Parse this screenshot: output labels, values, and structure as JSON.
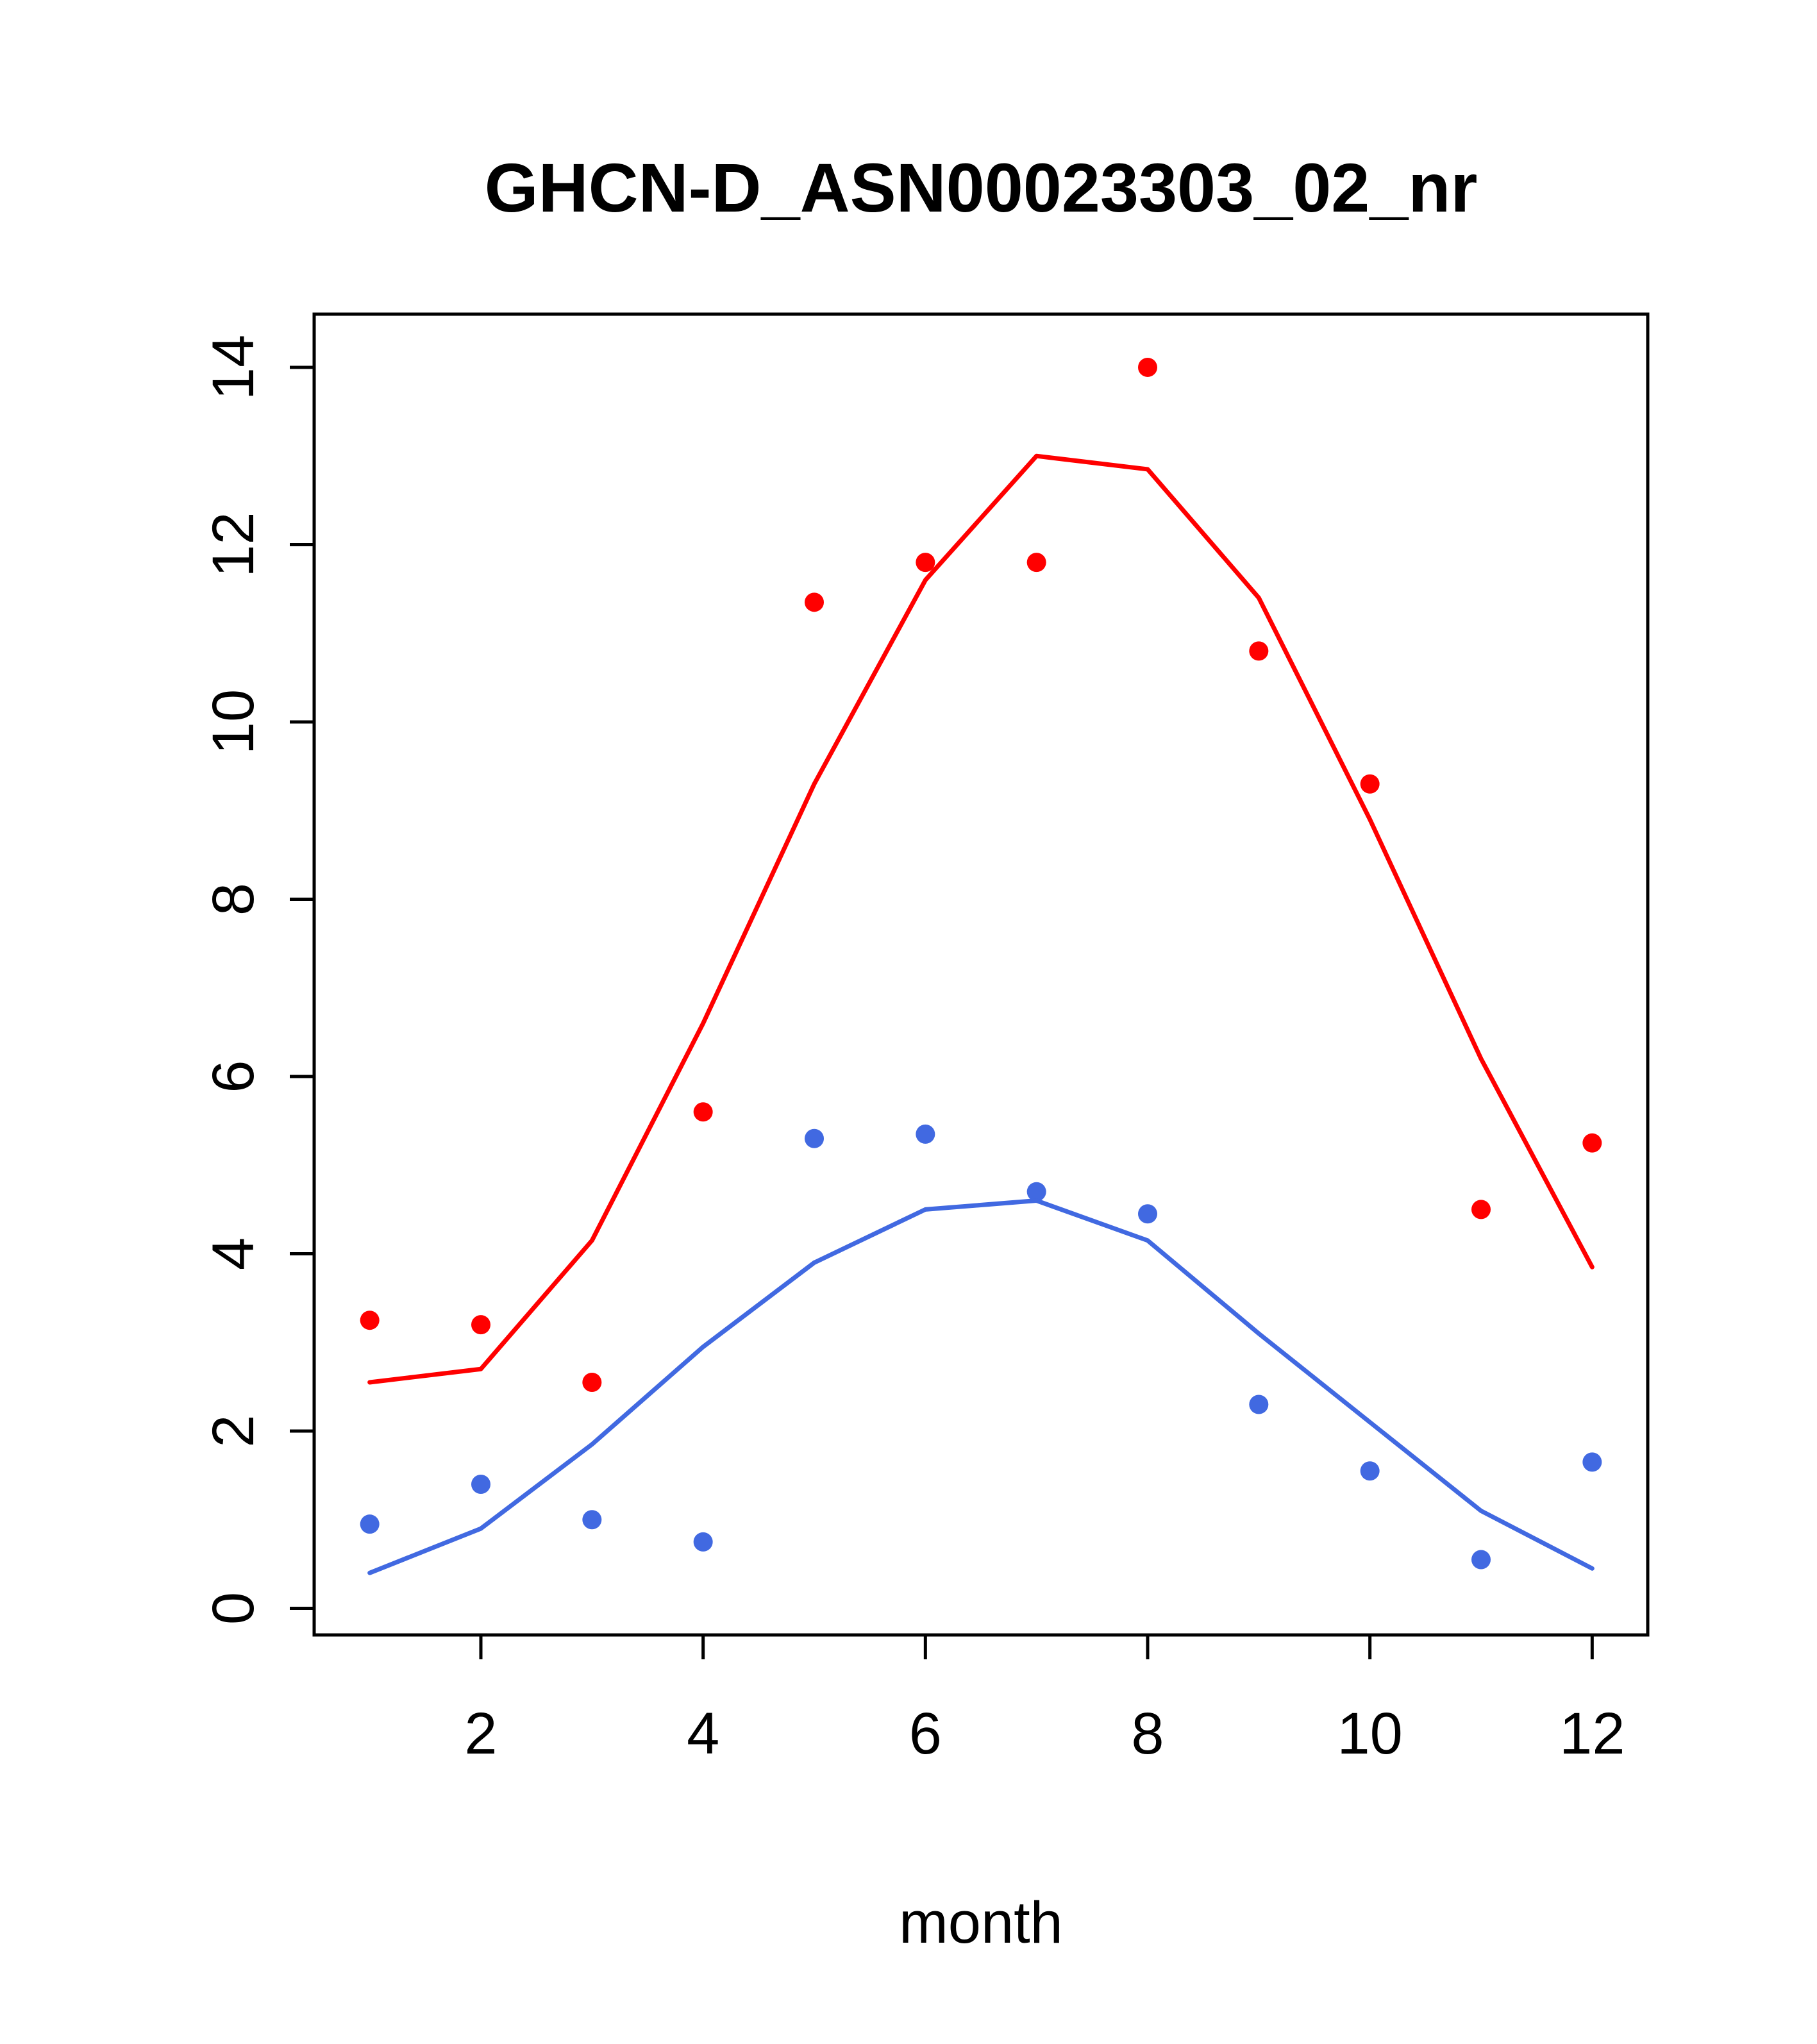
{
  "chart_data": {
    "type": "scatter+line",
    "title": "GHCN-D_ASN00023303_02_nr",
    "xlabel": "month",
    "ylabel": "",
    "x": [
      1,
      2,
      3,
      4,
      5,
      6,
      7,
      8,
      9,
      10,
      11,
      12
    ],
    "x_ticks": [
      2,
      4,
      6,
      8,
      10,
      12
    ],
    "y_ticks": [
      0,
      2,
      4,
      6,
      8,
      10,
      12,
      14
    ],
    "xlim": [
      0.5,
      12.5
    ],
    "ylim": [
      -0.3,
      14.6
    ],
    "grid": false,
    "legend": "none",
    "series": [
      {
        "name": "red-points",
        "style": "points",
        "color": "#FF0000",
        "values": [
          3.25,
          3.2,
          2.55,
          5.6,
          11.35,
          11.8,
          11.8,
          14.0,
          10.8,
          9.3,
          4.5,
          5.25
        ]
      },
      {
        "name": "red-line",
        "style": "line",
        "color": "#FF0000",
        "values": [
          2.55,
          2.7,
          4.15,
          6.6,
          9.3,
          11.6,
          13.0,
          12.85,
          11.4,
          8.9,
          6.2,
          3.85
        ]
      },
      {
        "name": "blue-points",
        "style": "points",
        "color": "#4169E1",
        "values": [
          0.95,
          1.4,
          1.0,
          0.75,
          5.3,
          5.35,
          4.7,
          4.45,
          2.3,
          1.55,
          0.55,
          1.65
        ]
      },
      {
        "name": "blue-line",
        "style": "line",
        "color": "#4169E1",
        "values": [
          0.4,
          0.9,
          1.85,
          2.95,
          3.9,
          4.5,
          4.6,
          4.15,
          3.1,
          2.1,
          1.1,
          0.45
        ]
      }
    ],
    "colors": {
      "red": "#FF0000",
      "blue": "#4169E1",
      "axis": "#000000"
    }
  }
}
